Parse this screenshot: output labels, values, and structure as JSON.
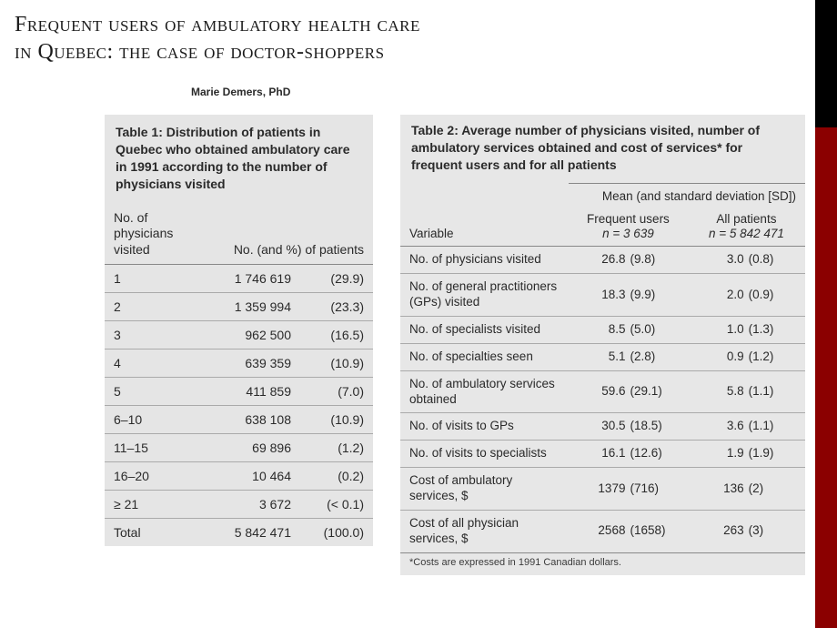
{
  "title_line1": "Frequent users of ambulatory health care",
  "title_line2": "in Quebec: the case of doctor-shoppers",
  "author": "Marie Demers, PhD",
  "table1": {
    "caption": "Table 1: Distribution of patients in Quebec who obtained ambulatory care in 1991 according to the number of physicians visited",
    "col1_header": "No. of physicians visited",
    "col2_header": "No. (and %) of patients",
    "rows": [
      {
        "label": "1",
        "count": "1 746 619",
        "pct": "(29.9)"
      },
      {
        "label": "2",
        "count": "1 359 994",
        "pct": "(23.3)"
      },
      {
        "label": "3",
        "count": "962 500",
        "pct": "(16.5)"
      },
      {
        "label": "4",
        "count": "639 359",
        "pct": "(10.9)"
      },
      {
        "label": "5",
        "count": "411 859",
        "pct": "(7.0)"
      },
      {
        "label": "6–10",
        "count": "638 108",
        "pct": "(10.9)"
      },
      {
        "label": "11–15",
        "count": "69 896",
        "pct": "(1.2)"
      },
      {
        "label": "16–20",
        "count": "10 464",
        "pct": "(0.2)"
      },
      {
        "label": "≥ 21",
        "count": "3 672",
        "pct": "(< 0.1)"
      },
      {
        "label": "Total",
        "count": "5 842 471",
        "pct": "(100.0)"
      }
    ]
  },
  "table2": {
    "caption": "Table 2: Average number of physicians visited, number of ambulatory services obtained and cost of services* for frequent users and for all patients",
    "super_header": "Mean (and standard deviation [SD])",
    "col_variable": "Variable",
    "col_freq_label": "Frequent users",
    "col_freq_n": "n = 3 639",
    "col_all_label": "All patients",
    "col_all_n": "n = 5 842 471",
    "rows": [
      {
        "var": "No. of physicians visited",
        "fmean": "26.8",
        "fsd": "(9.8)",
        "amean": "3.0",
        "asd": "(0.8)"
      },
      {
        "var": "No. of general practitioners (GPs) visited",
        "fmean": "18.3",
        "fsd": "(9.9)",
        "amean": "2.0",
        "asd": "(0.9)"
      },
      {
        "var": "No. of specialists visited",
        "fmean": "8.5",
        "fsd": "(5.0)",
        "amean": "1.0",
        "asd": "(1.3)"
      },
      {
        "var": "No. of specialties seen",
        "fmean": "5.1",
        "fsd": "(2.8)",
        "amean": "0.9",
        "asd": "(1.2)"
      },
      {
        "var": "No. of ambulatory services obtained",
        "fmean": "59.6",
        "fsd": "(29.1)",
        "amean": "5.8",
        "asd": "(1.1)"
      },
      {
        "var": "No. of visits to GPs",
        "fmean": "30.5",
        "fsd": "(18.5)",
        "amean": "3.6",
        "asd": "(1.1)"
      },
      {
        "var": "No. of visits to specialists",
        "fmean": "16.1",
        "fsd": "(12.6)",
        "amean": "1.9",
        "asd": "(1.9)"
      },
      {
        "var": "Cost of ambulatory services, $",
        "fmean": "1379",
        "fsd": "(716)",
        "amean": "136",
        "asd": "(2)"
      },
      {
        "var": "Cost of all physician services, $",
        "fmean": "2568",
        "fsd": "(1658)",
        "amean": "263",
        "asd": "(3)"
      }
    ],
    "footnote": "*Costs are expressed in 1991 Canadian dollars."
  },
  "colors": {
    "page_bg": "#ffffff",
    "sidebar_red": "#8b0000",
    "sidebar_black": "#000000",
    "table_bg": "#e5e5e5",
    "rule": "#888888",
    "text": "#2a2a2a"
  }
}
